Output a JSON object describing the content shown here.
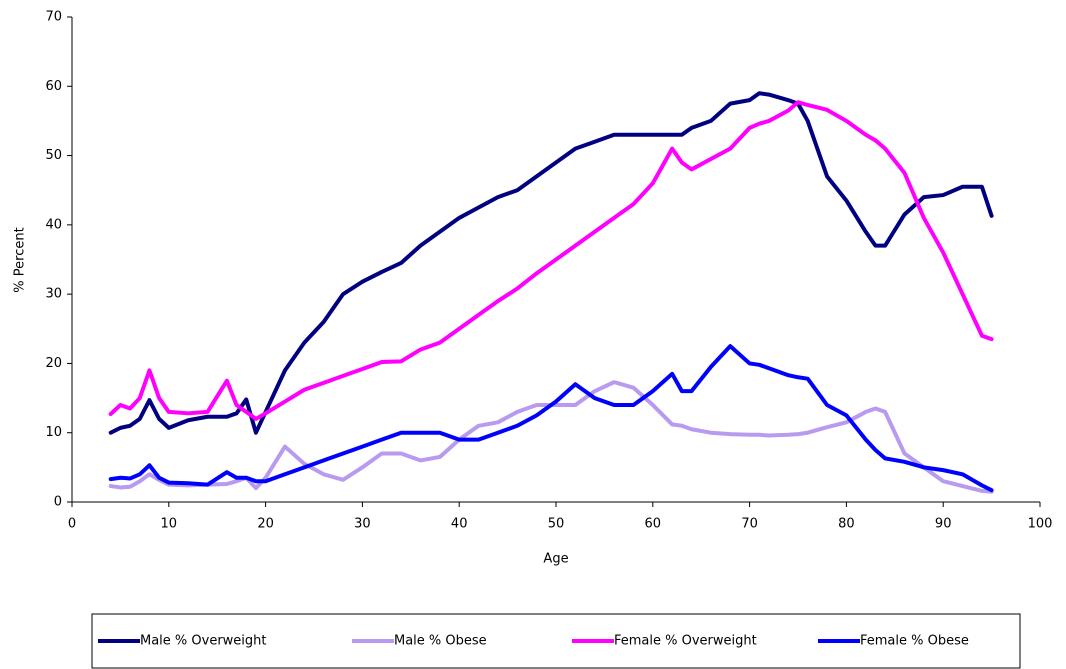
{
  "chart_data": {
    "type": "line",
    "x_label": "Age",
    "y_label": "% Percent",
    "x": [
      4,
      5,
      6,
      7,
      8,
      9,
      10,
      12,
      14,
      16,
      17,
      18,
      19,
      20,
      22,
      24,
      26,
      28,
      30,
      32,
      34,
      36,
      38,
      40,
      42,
      44,
      46,
      48,
      50,
      52,
      54,
      56,
      58,
      60,
      62,
      63,
      64,
      66,
      68,
      70,
      71,
      72,
      74,
      75,
      76,
      78,
      80,
      82,
      83,
      84,
      86,
      88,
      90,
      92,
      94,
      95
    ],
    "series": [
      {
        "name": "Male % Overweight",
        "color": "#000080",
        "values": [
          10,
          10.7,
          11,
          12,
          14.7,
          12,
          10.7,
          11.8,
          12.3,
          12.3,
          12.8,
          14.8,
          10,
          13,
          19,
          23,
          26,
          30,
          31.8,
          33.2,
          34.5,
          37,
          39,
          41,
          42.5,
          44,
          45,
          47,
          49,
          51,
          52,
          53,
          53,
          53,
          53,
          53,
          54,
          55,
          57.5,
          58,
          59,
          58.8,
          58,
          57.5,
          55,
          47,
          43.5,
          39,
          37,
          37,
          41.5,
          44,
          44.3,
          45.5,
          45.5,
          41.3
        ]
      },
      {
        "name": "Male % Obese",
        "color": "#b89af0",
        "values": [
          2.3,
          2.1,
          2.2,
          3,
          4,
          3.2,
          2.5,
          2.4,
          2.5,
          2.6,
          3,
          3.5,
          2,
          3.5,
          8,
          5.5,
          4,
          3.2,
          5,
          7,
          7,
          6,
          6.5,
          9,
          11,
          11.5,
          13,
          14,
          14,
          14,
          16,
          17.3,
          16.5,
          14,
          11.2,
          11,
          10.5,
          10,
          9.8,
          9.7,
          9.7,
          9.6,
          9.7,
          9.8,
          10,
          10.8,
          11.5,
          13,
          13.5,
          13,
          7,
          5,
          3,
          2.3,
          1.6,
          1.5
        ]
      },
      {
        "name": "Female % Overweight",
        "color": "#ff00ff",
        "values": [
          12.7,
          14,
          13.5,
          15,
          19,
          15,
          13,
          12.8,
          13,
          17.5,
          14,
          13,
          12,
          12.8,
          14.5,
          16.2,
          17.2,
          18.2,
          19.2,
          20.2,
          20.3,
          22,
          23,
          25,
          27,
          29,
          30.8,
          33,
          35,
          37,
          39,
          41,
          43,
          46,
          51,
          49,
          48,
          49.5,
          51,
          54,
          54.6,
          55,
          56.5,
          57.7,
          57.3,
          56.6,
          55,
          53,
          52.2,
          51,
          47.5,
          41,
          36,
          30,
          24,
          23.5
        ]
      },
      {
        "name": "Female % Obese",
        "color": "#0000ff",
        "values": [
          3.3,
          3.5,
          3.4,
          4,
          5.3,
          3.5,
          2.8,
          2.7,
          2.5,
          4.3,
          3.5,
          3.5,
          3,
          3,
          4,
          5,
          6,
          7,
          8,
          9,
          10,
          10,
          10,
          9,
          9,
          10,
          11,
          12.5,
          14.5,
          17,
          15,
          14,
          14,
          16,
          18.5,
          16,
          16,
          19.5,
          22.5,
          20,
          19.8,
          19.3,
          18.3,
          18,
          17.8,
          14,
          12.5,
          9,
          7.5,
          6.3,
          5.8,
          5,
          4.6,
          4,
          2.4,
          1.7
        ]
      }
    ],
    "xlim": [
      0,
      100
    ],
    "xticks": [
      0,
      10,
      20,
      30,
      40,
      50,
      60,
      70,
      80,
      90,
      100
    ],
    "ylim": [
      0,
      70
    ],
    "yticks": [
      0,
      10,
      20,
      30,
      40,
      50,
      60,
      70
    ],
    "legend": "bottom"
  }
}
